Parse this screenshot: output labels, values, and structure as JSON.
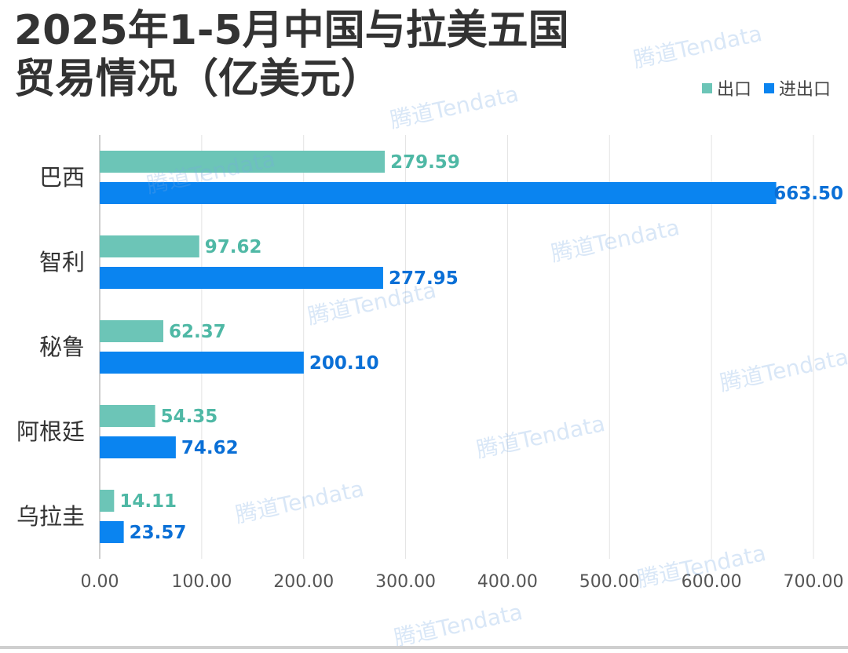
{
  "title_lines": [
    "2025年1-5月中国与拉美五国",
    "贸易情况（亿美元）"
  ],
  "watermark": "腾道Tendata",
  "chart_data": {
    "type": "bar",
    "orientation": "horizontal",
    "categories": [
      "巴西",
      "智利",
      "秘鲁",
      "阿根廷",
      "乌拉圭"
    ],
    "series": [
      {
        "name": "出口",
        "color": "#6cc5b7",
        "label_color": "#4fb8a5",
        "values": [
          279.59,
          97.62,
          62.37,
          54.35,
          14.11
        ],
        "labels": [
          "279.59",
          "97.62",
          "62.37",
          "54.35",
          "14.11"
        ]
      },
      {
        "name": "进出口",
        "color": "#0a84f0",
        "label_color": "#0a6fd6",
        "values": [
          663.5,
          277.95,
          200.1,
          74.62,
          23.57
        ],
        "labels": [
          "663.50",
          "277.95",
          "200.10",
          "74.62",
          "23.57"
        ]
      }
    ],
    "xlim": [
      0,
      700
    ],
    "xticks": [
      0,
      100,
      200,
      300,
      400,
      500,
      600,
      700
    ],
    "xtick_labels": [
      "0.00",
      "100.00",
      "200.00",
      "300.00",
      "400.00",
      "500.00",
      "600.00",
      "700.00"
    ],
    "grid": "vertical",
    "legend_position": "top-right"
  }
}
